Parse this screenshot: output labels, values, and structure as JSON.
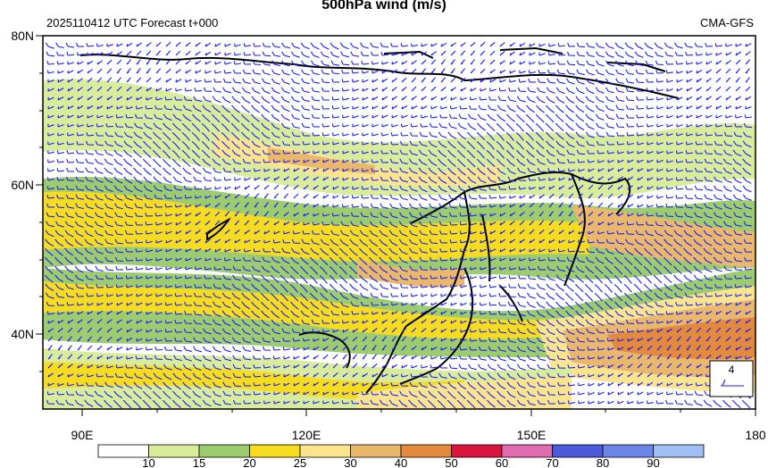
{
  "title": "500hPa wind (m/s)",
  "init_label": "2025110412 UTC Forecast t+000",
  "model_label": "CMA-GFS",
  "lat_labels": [
    "80N",
    "60N",
    "40N"
  ],
  "lon_labels": [
    "90E",
    "120E",
    "150E",
    "180"
  ],
  "vector_ref_value": "4",
  "colorbar": {
    "levels": [
      "10",
      "15",
      "20",
      "25",
      "30",
      "40",
      "50",
      "60",
      "70",
      "80",
      "90"
    ],
    "colors": [
      "#ffffff",
      "#d9ec9a",
      "#9ccc6e",
      "#f5dc1e",
      "#fbe58c",
      "#e9b86a",
      "#e38a3c",
      "#d8153c",
      "#e06cb0",
      "#4a5ad8",
      "#6b86e6",
      "#9fbef3"
    ]
  },
  "map": {
    "land_color": "#ffffff",
    "coast_color": "#000000",
    "barb_color": "#1a1aff"
  }
}
